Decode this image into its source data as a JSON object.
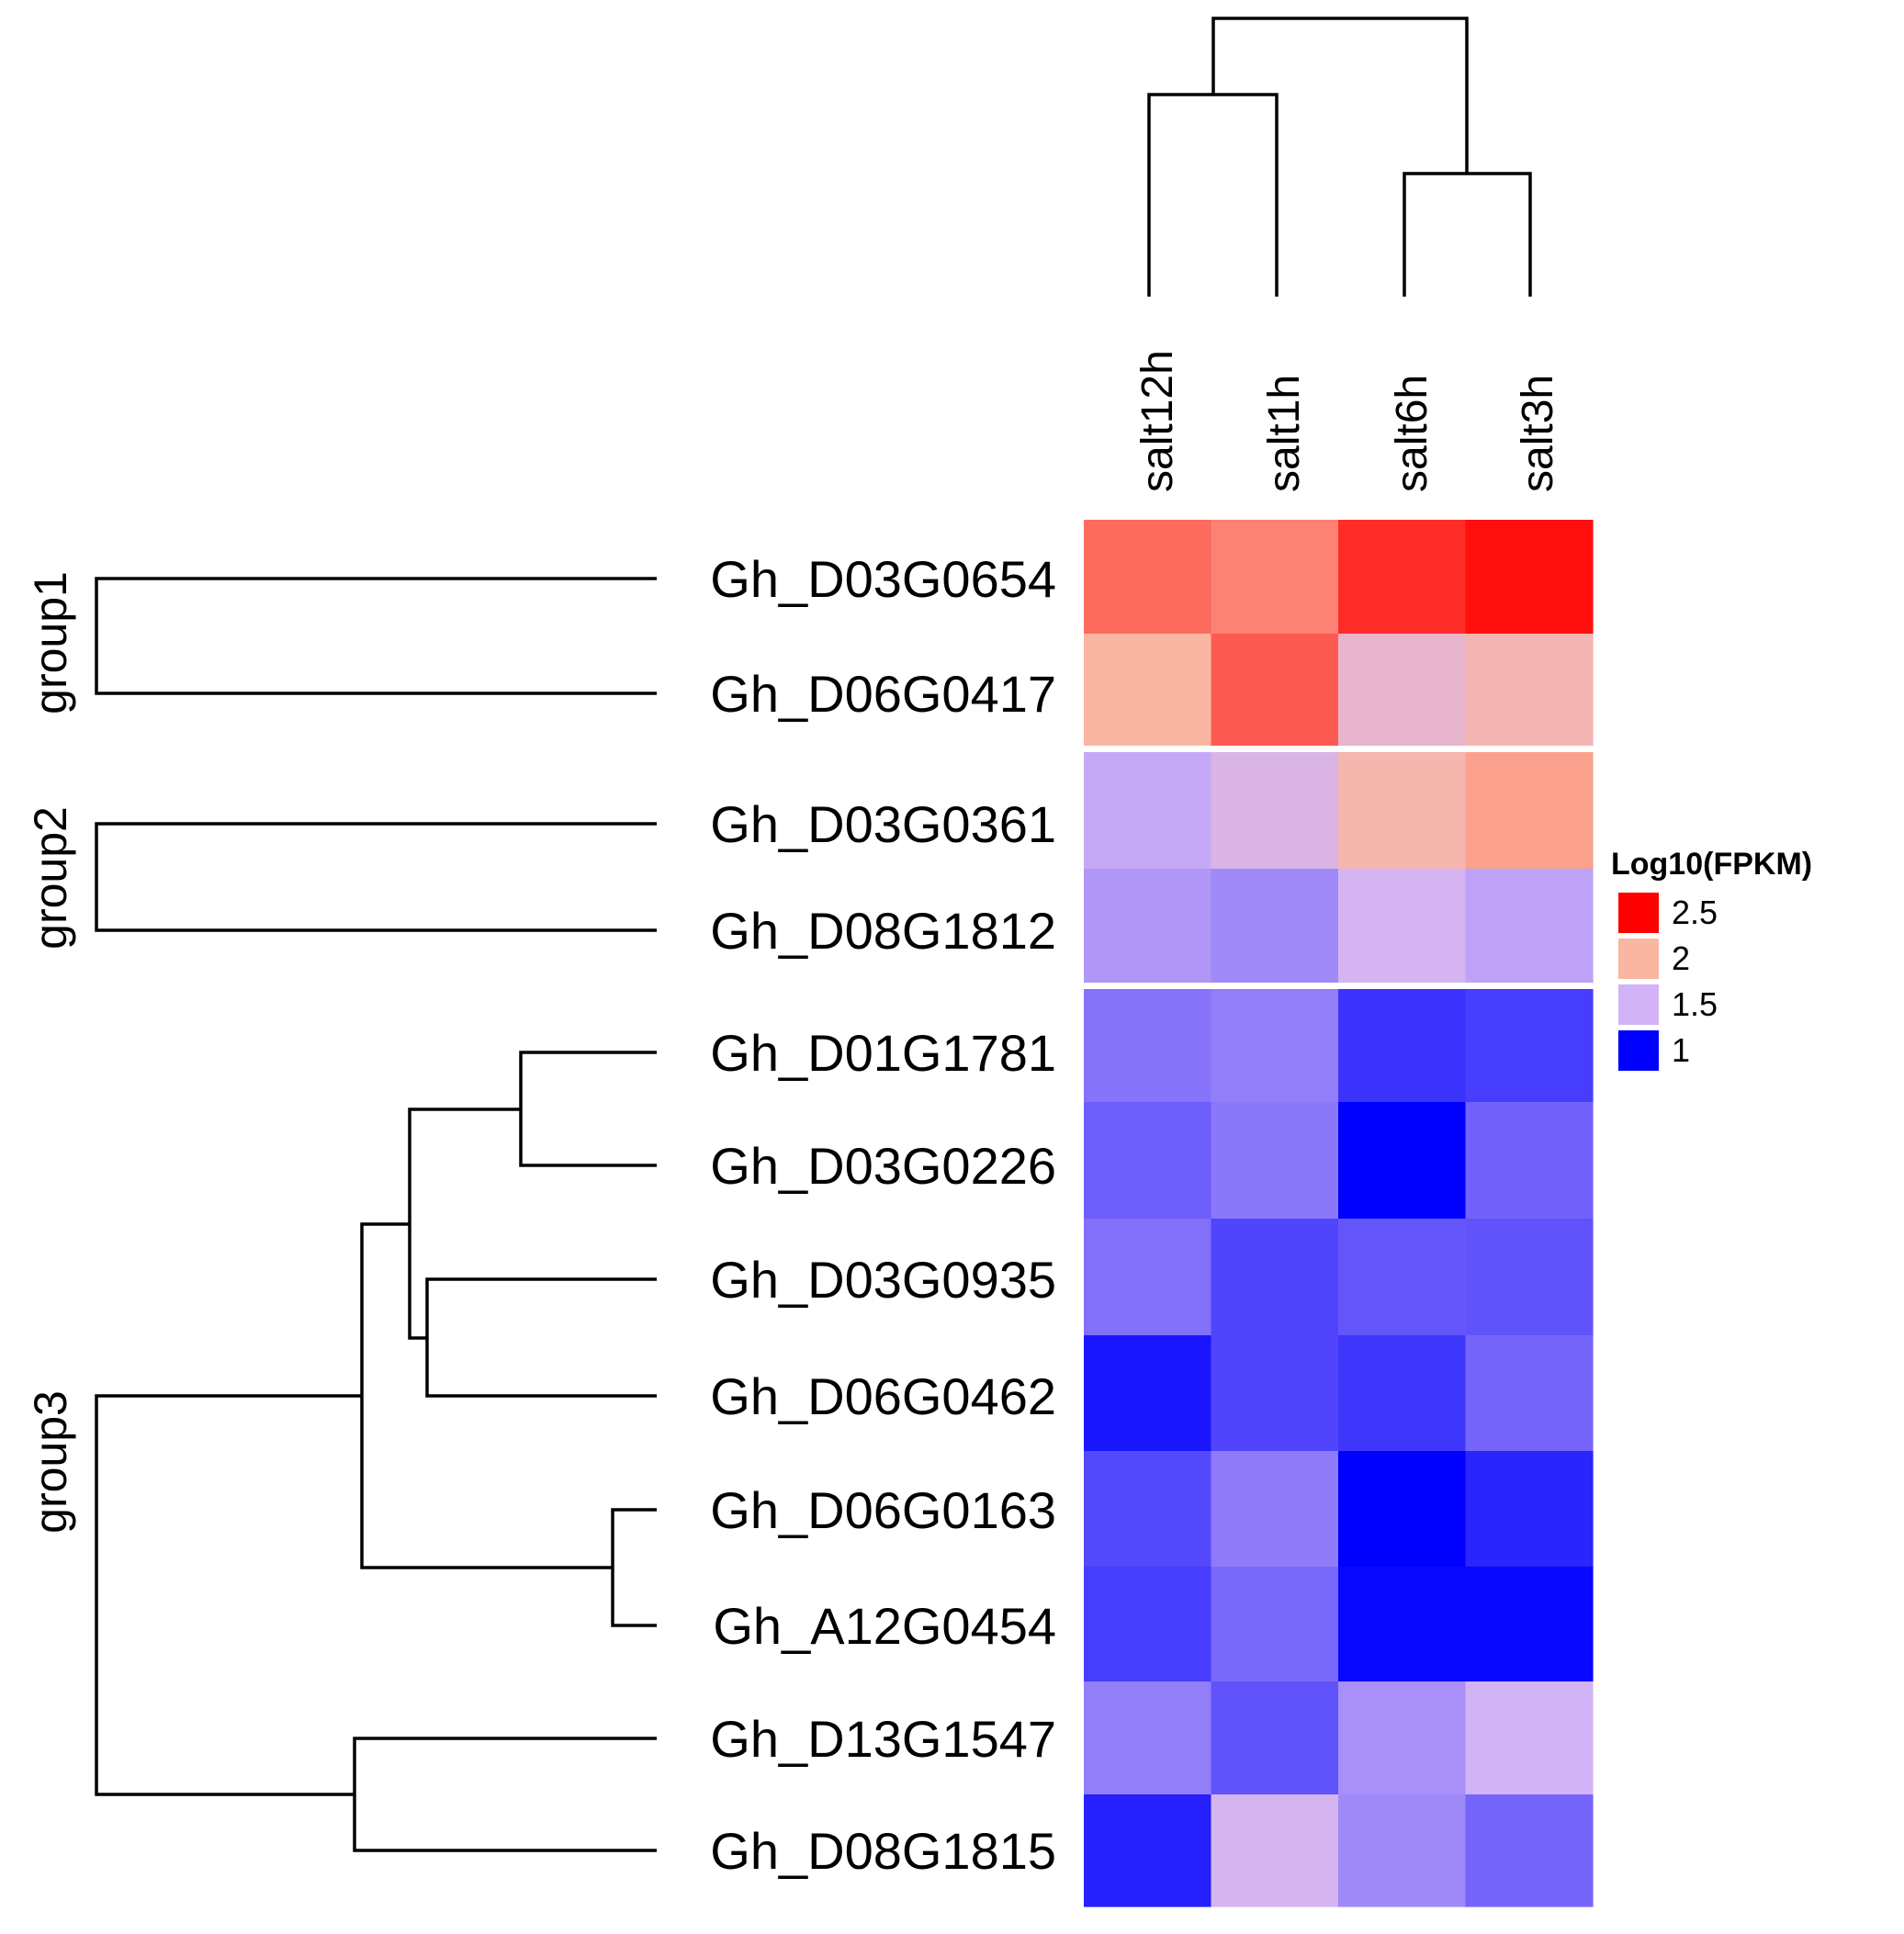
{
  "chart_data": {
    "type": "heatmap",
    "title": "",
    "xlabel": "",
    "ylabel": "",
    "columns": [
      "salt12h",
      "salt1h",
      "salt6h",
      "salt3h"
    ],
    "rows": [
      {
        "gene": "Gh_D03G0654",
        "group": "group1",
        "values": [
          2.25,
          2.17,
          2.45,
          2.55
        ]
      },
      {
        "gene": "Gh_D06G0417",
        "group": "group1",
        "values": [
          2.0,
          2.3,
          1.75,
          1.9
        ]
      },
      {
        "gene": "Gh_D03G0361",
        "group": "group2",
        "values": [
          1.47,
          1.6,
          1.93,
          2.07
        ]
      },
      {
        "gene": "Gh_D08G1812",
        "group": "group2",
        "values": [
          1.42,
          1.38,
          1.53,
          1.45
        ]
      },
      {
        "gene": "Gh_D01G1781",
        "group": "group3",
        "values": [
          1.32,
          1.35,
          1.14,
          1.17
        ]
      },
      {
        "gene": "Gh_D03G0226",
        "group": "group3",
        "values": [
          1.26,
          1.33,
          1.0,
          1.27
        ]
      },
      {
        "gene": "Gh_D03G0935",
        "group": "group3",
        "values": [
          1.31,
          1.19,
          1.24,
          1.23
        ]
      },
      {
        "gene": "Gh_D06G0462",
        "group": "group3",
        "values": [
          1.06,
          1.19,
          1.15,
          1.28
        ]
      },
      {
        "gene": "Gh_D06G0163",
        "group": "group3",
        "values": [
          1.2,
          1.34,
          1.0,
          1.1
        ]
      },
      {
        "gene": "Gh_A12G0454",
        "group": "group3",
        "values": [
          1.17,
          1.29,
          1.02,
          1.02
        ]
      },
      {
        "gene": "Gh_D13G1547",
        "group": "group3",
        "values": [
          1.35,
          1.23,
          1.4,
          1.5
        ]
      },
      {
        "gene": "Gh_D08G1815",
        "group": "group3",
        "values": [
          1.09,
          1.55,
          1.38,
          1.28
        ]
      }
    ],
    "groups": [
      "group1",
      "group2",
      "group3"
    ],
    "legend": {
      "title": "Log10(FPKM)",
      "position": "right",
      "breaks": [
        {
          "label": "2.5",
          "value": 2.5,
          "color": "#ff0000"
        },
        {
          "label": "2",
          "value": 2.0,
          "color": "#fbb6a1"
        },
        {
          "label": "1.5",
          "value": 1.5,
          "color": "#d2b4f6"
        },
        {
          "label": "1",
          "value": 1.0,
          "color": "#0000ff"
        }
      ]
    },
    "color_scale": {
      "domain": [
        1.0,
        1.5,
        2.0,
        2.6
      ],
      "colors": [
        "#0000ff",
        "#d2b4f6",
        "#fbb6a1",
        "#ff0000"
      ]
    },
    "column_dendrogram": "((salt12h,salt1h),(salt6h,salt3h))",
    "row_dendrogram": "group1:(Gh_D03G0654,Gh_D06G0417); group2:(Gh_D03G0361,Gh_D08G1812); group3:((((Gh_D01G1781,Gh_D03G0226),(Gh_D03G0935,Gh_D06G0462)),(Gh_D06G0163,Gh_A12G0454)),(Gh_D13G1547,Gh_D08G1815))"
  }
}
